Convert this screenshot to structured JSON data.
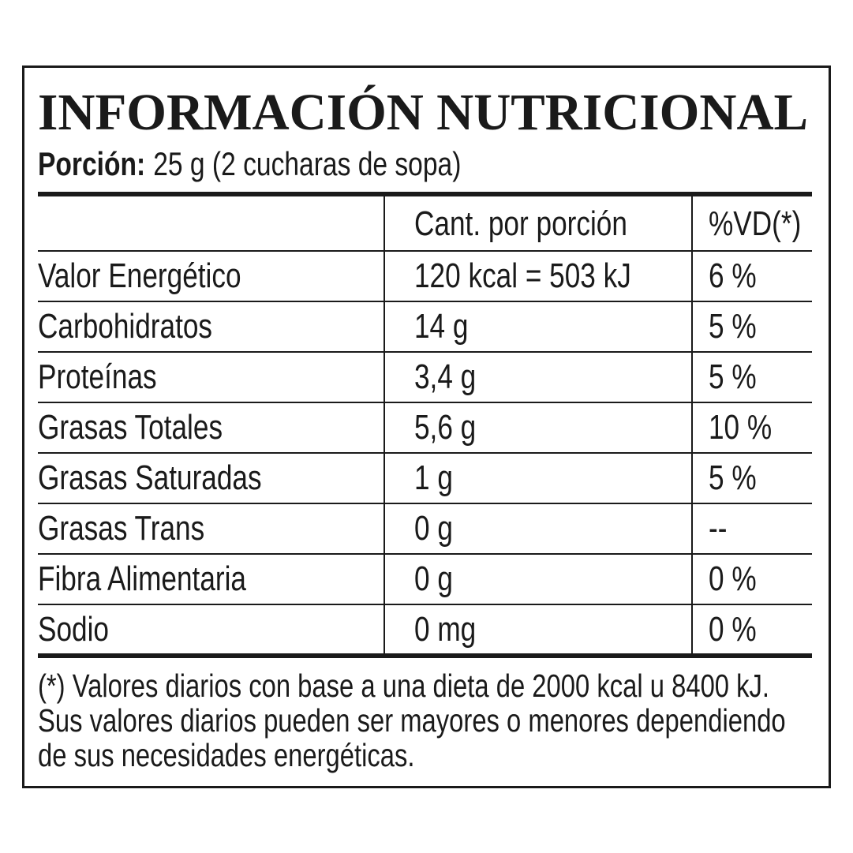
{
  "header": {
    "title": "INFORMACIÓN NUTRICIONAL",
    "serving_label": "Porción:",
    "serving_text": "25 g (2 cucharas de sopa)"
  },
  "table": {
    "header": [
      "Cant. por porción",
      "%VD(*)"
    ],
    "rows": [
      [
        "Valor Energético",
        "120 kcal = 503 kJ",
        "6 %"
      ],
      [
        "Carbohidratos",
        "14 g",
        "5 %"
      ],
      [
        "Proteínas",
        "3,4 g",
        "5 %"
      ],
      [
        "Grasas Totales",
        "5,6 g",
        "10 %"
      ],
      [
        "Grasas Saturadas",
        "1 g",
        "5 %"
      ],
      [
        "Grasas Trans",
        "0 g",
        "--"
      ],
      [
        "Fibra Alimentaria",
        "0 g",
        "0 %"
      ],
      [
        "Sodio",
        "0 mg",
        "0 %"
      ]
    ]
  },
  "footnote": [
    "(*) Valores diarios con base a una dieta de 2000 kcal u 8400 kJ.",
    "Sus valores diarios pueden ser mayores o menores dependiendo",
    "de sus necesidades energéticas."
  ]
}
